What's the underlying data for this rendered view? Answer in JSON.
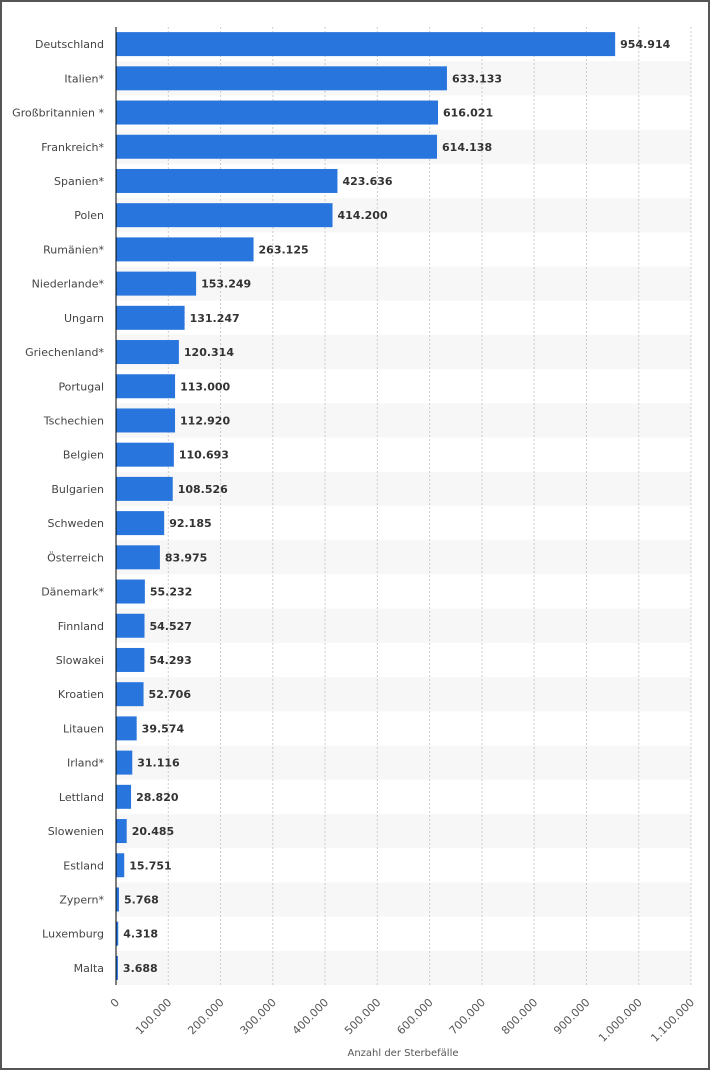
{
  "chart_data": {
    "type": "bar",
    "orientation": "horizontal",
    "categories": [
      "Deutschland",
      "Italien*",
      "Großbritannien *",
      "Frankreich*",
      "Spanien*",
      "Polen",
      "Rumänien*",
      "Niederlande*",
      "Ungarn",
      "Griechenland*",
      "Portugal",
      "Tschechien",
      "Belgien",
      "Bulgarien",
      "Schweden",
      "Österreich",
      "Dänemark*",
      "Finnland",
      "Slowakei",
      "Kroatien",
      "Litauen",
      "Irland*",
      "Lettland",
      "Slowenien",
      "Estland",
      "Zypern*",
      "Luxemburg",
      "Malta"
    ],
    "values": [
      954914,
      633133,
      616021,
      614138,
      423636,
      414200,
      263125,
      153249,
      131247,
      120314,
      113000,
      112920,
      110693,
      108526,
      92185,
      83975,
      55232,
      54527,
      54293,
      52706,
      39574,
      31116,
      28820,
      20485,
      15751,
      5768,
      4318,
      3688
    ],
    "value_labels": [
      "954.914",
      "633.133",
      "616.021",
      "614.138",
      "423.636",
      "414.200",
      "263.125",
      "153.249",
      "131.247",
      "120.314",
      "113.000",
      "112.920",
      "110.693",
      "108.526",
      "92.185",
      "83.975",
      "55.232",
      "54.527",
      "54.293",
      "52.706",
      "39.574",
      "31.116",
      "28.820",
      "20.485",
      "15.751",
      "5.768",
      "4.318",
      "3.688"
    ],
    "xlabel": "Anzahl der Sterbefälle",
    "xlim": [
      0,
      1100000
    ],
    "x_ticks": [
      0,
      100000,
      200000,
      300000,
      400000,
      500000,
      600000,
      700000,
      800000,
      900000,
      1000000,
      1100000
    ],
    "x_tick_labels": [
      "0",
      "100.000",
      "200.000",
      "300.000",
      "400.000",
      "500.000",
      "600.000",
      "700.000",
      "800.000",
      "900.000",
      "1.000.000",
      "1.100.000"
    ],
    "grid": "vertical dotted",
    "bar_color": "#2876dd",
    "band_color": "#f7f7f7"
  }
}
